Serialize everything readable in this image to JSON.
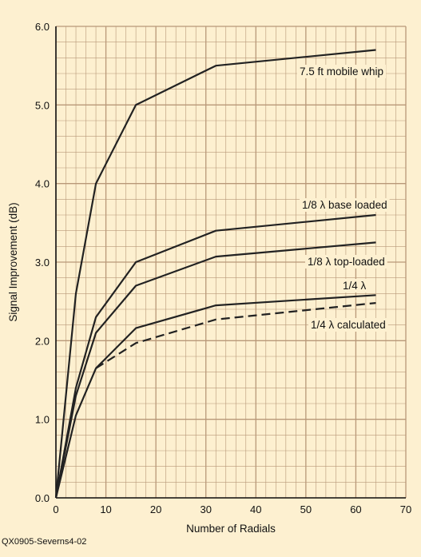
{
  "chart_data": {
    "type": "line",
    "title": "",
    "xlabel": "Number of Radials",
    "ylabel": "Signal Improvement (dB)",
    "xlim": [
      0,
      70
    ],
    "ylim": [
      0,
      6
    ],
    "x_major_ticks": [
      0,
      10,
      20,
      30,
      40,
      50,
      60,
      70
    ],
    "y_major_ticks": [
      0,
      1,
      2,
      3,
      4,
      5,
      6
    ],
    "x_tick_labels": [
      "0",
      "10",
      "20",
      "30",
      "40",
      "50",
      "60",
      "70"
    ],
    "y_tick_labels": [
      "0.0",
      "1.0",
      "2.0",
      "3.0",
      "4.0",
      "5.0",
      "6.0"
    ],
    "grid": true,
    "x_minor_step": 2,
    "y_minor_step": 0.2,
    "series": [
      {
        "name": "7.5 ft mobile whip",
        "style": "solid",
        "x": [
          0,
          4,
          8,
          16,
          32,
          64
        ],
        "y": [
          0,
          2.6,
          4.0,
          5.0,
          5.5,
          5.7
        ]
      },
      {
        "name": "1/8 λ base loaded",
        "style": "solid",
        "x": [
          0,
          4,
          8,
          16,
          32,
          64
        ],
        "y": [
          0,
          1.4,
          2.3,
          3.0,
          3.4,
          3.6
        ]
      },
      {
        "name": "1/8 λ top-loaded",
        "style": "solid",
        "x": [
          0,
          4,
          8,
          16,
          32,
          64
        ],
        "y": [
          0,
          1.3,
          2.1,
          2.7,
          3.07,
          3.25
        ]
      },
      {
        "name": "1/4 λ",
        "style": "solid",
        "x": [
          0,
          4,
          8,
          16,
          32,
          64
        ],
        "y": [
          0,
          1.05,
          1.65,
          2.16,
          2.45,
          2.58
        ]
      },
      {
        "name": "1/4 λ calculated",
        "style": "dashed",
        "x": [
          8,
          16,
          32,
          64
        ],
        "y": [
          1.65,
          1.97,
          2.27,
          2.48
        ]
      }
    ],
    "colors": {
      "background": "#fdf0d0",
      "grid": "#b89878",
      "line": "#222222"
    }
  },
  "caption": "QX0905-Severns4-02"
}
